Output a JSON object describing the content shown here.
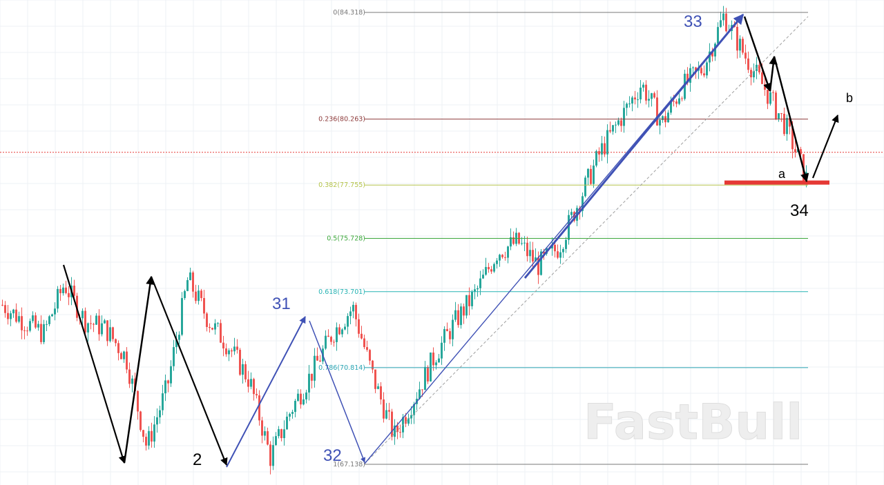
{
  "chart_data": {
    "type": "candlestick",
    "ylim": [
      66.9,
      84.6
    ],
    "grid": true,
    "colors": {
      "up": "#26a69a",
      "down": "#ef5350",
      "current_price_line": "#e53935",
      "support_bar": "#e53935",
      "blue_waves": "#3f51b5",
      "black_waves": "#000000",
      "trend_channel": "#9e9e9e"
    },
    "fib_levels": [
      {
        "ratio": "0",
        "price": 84.318,
        "label": "0(84.318)",
        "color": "#777777"
      },
      {
        "ratio": "0.236",
        "price": 80.263,
        "label": "0.236(80.263)",
        "color": "#8d3b3b"
      },
      {
        "ratio": "0.382",
        "price": 77.755,
        "label": "0.382(77.755)",
        "color": "#b5c44a"
      },
      {
        "ratio": "0.5",
        "price": 75.728,
        "label": "0.5(75.728)",
        "color": "#3aa63a"
      },
      {
        "ratio": "0.618",
        "price": 73.701,
        "label": "0.618(73.701)",
        "color": "#26b3b3"
      },
      {
        "ratio": "0.786",
        "price": 70.814,
        "label": "0.786(70.814)",
        "color": "#2aa5b3"
      },
      {
        "ratio": "1",
        "price": 67.138,
        "label": "1(67.138)",
        "color": "#777777"
      }
    ],
    "current_price": 79.0,
    "support_level": 77.85,
    "wave_labels": [
      {
        "text": "2",
        "style": "black"
      },
      {
        "text": "31",
        "style": "blue"
      },
      {
        "text": "32",
        "style": "blue"
      },
      {
        "text": "33",
        "style": "blue"
      },
      {
        "text": "34",
        "style": "black"
      },
      {
        "text": "a",
        "style": "black-small"
      },
      {
        "text": "b",
        "style": "black-small"
      }
    ],
    "price_path": [
      [
        0,
        73.2
      ],
      [
        0.04,
        72.6
      ],
      [
        0.08,
        72.1
      ],
      [
        0.12,
        74.0
      ],
      [
        0.16,
        72.6
      ],
      [
        0.2,
        72.3
      ],
      [
        0.24,
        71.2
      ],
      [
        0.28,
        67.8
      ],
      [
        0.32,
        70.1
      ],
      [
        0.36,
        74.2
      ],
      [
        0.4,
        72.6
      ],
      [
        0.44,
        71.6
      ],
      [
        0.48,
        70.3
      ],
      [
        0.52,
        67.4
      ],
      [
        0.56,
        69.2
      ],
      [
        0.6,
        70.6
      ],
      [
        0.64,
        72.1
      ],
      [
        0.68,
        73.1
      ],
      [
        0.72,
        70.4
      ],
      [
        0.76,
        68.2
      ],
      [
        0.8,
        69.7
      ],
      [
        0.84,
        71.3
      ],
      [
        0.88,
        72.6
      ],
      [
        0.92,
        73.7
      ],
      [
        0.96,
        75.2
      ],
      [
        1.0,
        75.6
      ],
      [
        1.04,
        74.7
      ],
      [
        1.08,
        75.4
      ],
      [
        1.12,
        77.2
      ],
      [
        1.16,
        79.0
      ],
      [
        1.2,
        80.3
      ],
      [
        1.24,
        81.6
      ],
      [
        1.28,
        80.1
      ],
      [
        1.32,
        81.5
      ],
      [
        1.36,
        82.2
      ],
      [
        1.4,
        84.2
      ],
      [
        1.44,
        82.7
      ],
      [
        1.48,
        81.4
      ],
      [
        1.52,
        80.0
      ],
      [
        1.56,
        78.0
      ]
    ]
  },
  "watermark": "FastBull"
}
